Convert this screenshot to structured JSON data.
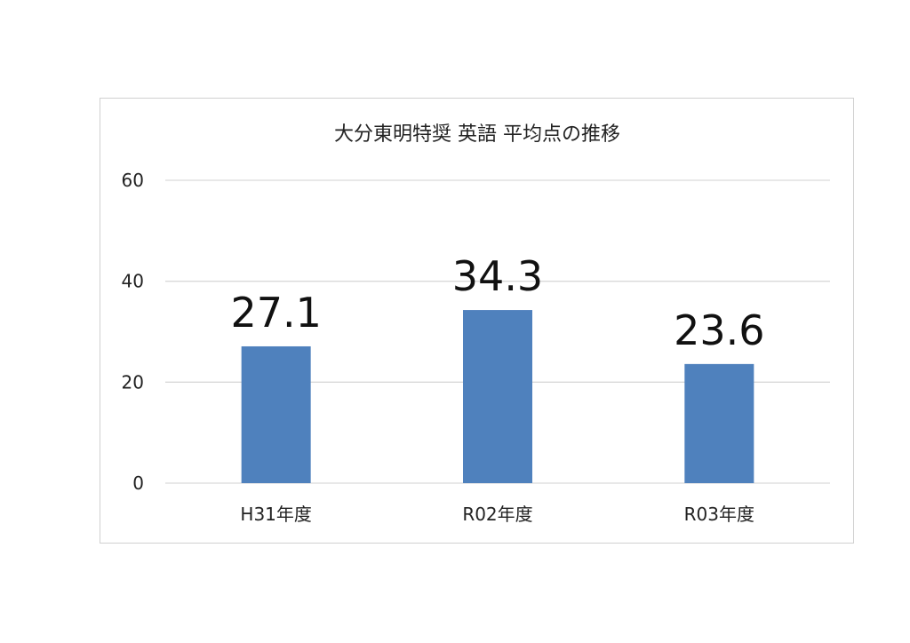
{
  "chart_data": {
    "type": "bar",
    "title": "大分東明特奨 英語 平均点の推移",
    "categories": [
      "H31年度",
      "R02年度",
      "R03年度"
    ],
    "values": [
      27.1,
      34.3,
      23.6
    ],
    "data_labels": [
      "27.1",
      "34.3",
      "23.6"
    ],
    "ylim": [
      0,
      60
    ],
    "yticks": [
      0,
      20,
      40,
      60
    ],
    "grid": true,
    "legend": "none",
    "bar_color": "#4f81bd"
  }
}
